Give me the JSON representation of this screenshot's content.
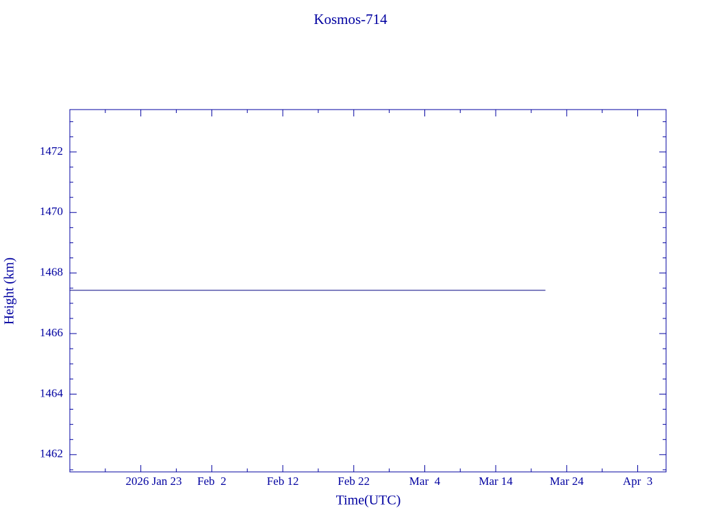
{
  "chart_data": {
    "type": "line",
    "title": "Kosmos-714",
    "x_label": "Time(UTC)",
    "y_label": "Height (km)",
    "x": [
      "2026-01-13",
      "2026-03-21"
    ],
    "series": [
      {
        "name": "Kosmos-714",
        "color": "#000080",
        "values": [
          1467.43,
          1467.43
        ]
      }
    ],
    "xlim": [
      "2026-01-13",
      "2026-04-07"
    ],
    "xticks": [
      {
        "value": "2026-01-23",
        "label": "2026 Jan 23"
      },
      {
        "value": "2026-02-02",
        "label": "Feb  2"
      },
      {
        "value": "2026-02-12",
        "label": "Feb 12"
      },
      {
        "value": "2026-02-22",
        "label": "Feb 22"
      },
      {
        "value": "2026-03-04",
        "label": "Mar  4"
      },
      {
        "value": "2026-03-14",
        "label": "Mar 14"
      },
      {
        "value": "2026-03-24",
        "label": "Mar 24"
      },
      {
        "value": "2026-04-03",
        "label": "Apr  3"
      }
    ],
    "xminorticks": [
      "2026-01-18",
      "2026-01-28",
      "2026-02-07",
      "2026-02-17",
      "2026-02-27",
      "2026-03-09",
      "2026-03-19",
      "2026-03-29"
    ],
    "ylim": [
      1461.43,
      1473.4
    ],
    "yticks": [
      1462,
      1464,
      1466,
      1468,
      1470,
      1472
    ],
    "yminorticks": [
      1461.5,
      1462.5,
      1463,
      1463.5,
      1464.5,
      1465,
      1465.5,
      1466.5,
      1467,
      1467.5,
      1468.5,
      1469,
      1469.5,
      1470.5,
      1471,
      1471.5,
      1472.5,
      1473
    ],
    "axis_color": "#0000a0"
  }
}
